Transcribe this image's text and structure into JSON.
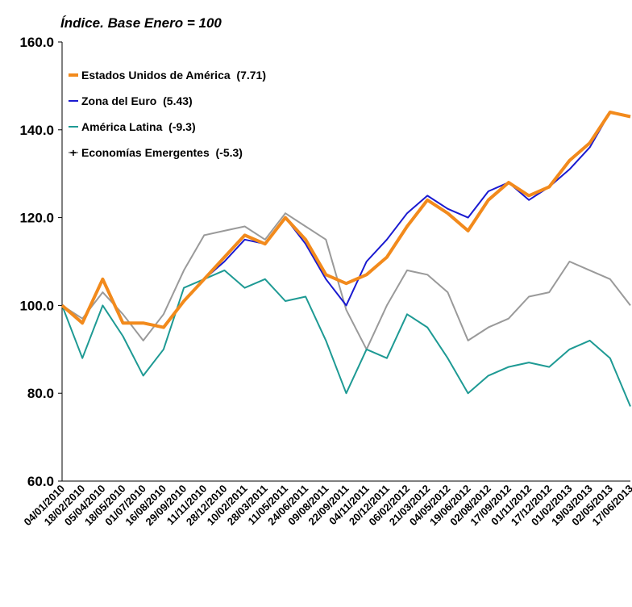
{
  "chart_data": {
    "type": "line",
    "title": "Índice. Base Enero = 100",
    "categories": [
      "04/01/2010",
      "18/02/2010",
      "05/04/2010",
      "18/05/2010",
      "01/07/2010",
      "16/08/2010",
      "29/09/2010",
      "11/11/2010",
      "28/12/2010",
      "10/02/2011",
      "28/03/2011",
      "11/05/2011",
      "24/06/2011",
      "09/08/2011",
      "22/09/2011",
      "04/11/2011",
      "20/12/2011",
      "06/02/2012",
      "21/03/2012",
      "04/05/2012",
      "19/06/2012",
      "02/08/2012",
      "17/09/2012",
      "01/11/2012",
      "17/12/2012",
      "01/02/2013",
      "19/03/2013",
      "02/05/2013",
      "17/06/2013"
    ],
    "series": [
      {
        "name": "Estados Unidos de América  (7.71)",
        "color": "#f28a1c",
        "values": [
          100,
          96,
          106,
          96,
          96,
          95,
          101,
          106,
          111,
          116,
          114,
          120,
          115,
          107,
          105,
          107,
          111,
          118,
          124,
          121,
          117,
          124,
          128,
          125,
          127,
          133,
          137,
          144,
          143
        ]
      },
      {
        "name": "Zona del Euro  (5.43)",
        "color": "#1a1ad0",
        "values": [
          100,
          96,
          106,
          96,
          96,
          95,
          101,
          106,
          110,
          115,
          114,
          120,
          114,
          106,
          100,
          110,
          115,
          121,
          125,
          122,
          120,
          126,
          128,
          124,
          127,
          131,
          136,
          144,
          143
        ]
      },
      {
        "name": "América Latina  (-9.3)",
        "color": "#1e9a94",
        "values": [
          100,
          88,
          100,
          93,
          84,
          90,
          104,
          106,
          108,
          104,
          106,
          101,
          102,
          92,
          80,
          90,
          88,
          98,
          95,
          88,
          80,
          84,
          86,
          87,
          86,
          90,
          92,
          88,
          77
        ]
      },
      {
        "name": "Economías Emergentes  (-5.3)",
        "color": "#9a9a9a",
        "marker": "+",
        "values": [
          100,
          97,
          103,
          98,
          92,
          98,
          108,
          116,
          117,
          118,
          115,
          121,
          118,
          115,
          99,
          90,
          100,
          108,
          107,
          103,
          92,
          95,
          97,
          102,
          103,
          110,
          108,
          106,
          100
        ]
      }
    ],
    "ylim": [
      60,
      160
    ],
    "yticks": [
      {
        "value": 60,
        "label": "60.0"
      },
      {
        "value": 80,
        "label": "80.0"
      },
      {
        "value": 100,
        "label": "100.0"
      },
      {
        "value": 120,
        "label": "120.0"
      },
      {
        "value": 140,
        "label": "140.0"
      },
      {
        "value": 160,
        "label": "160.0"
      }
    ],
    "legend": "upper-left"
  }
}
